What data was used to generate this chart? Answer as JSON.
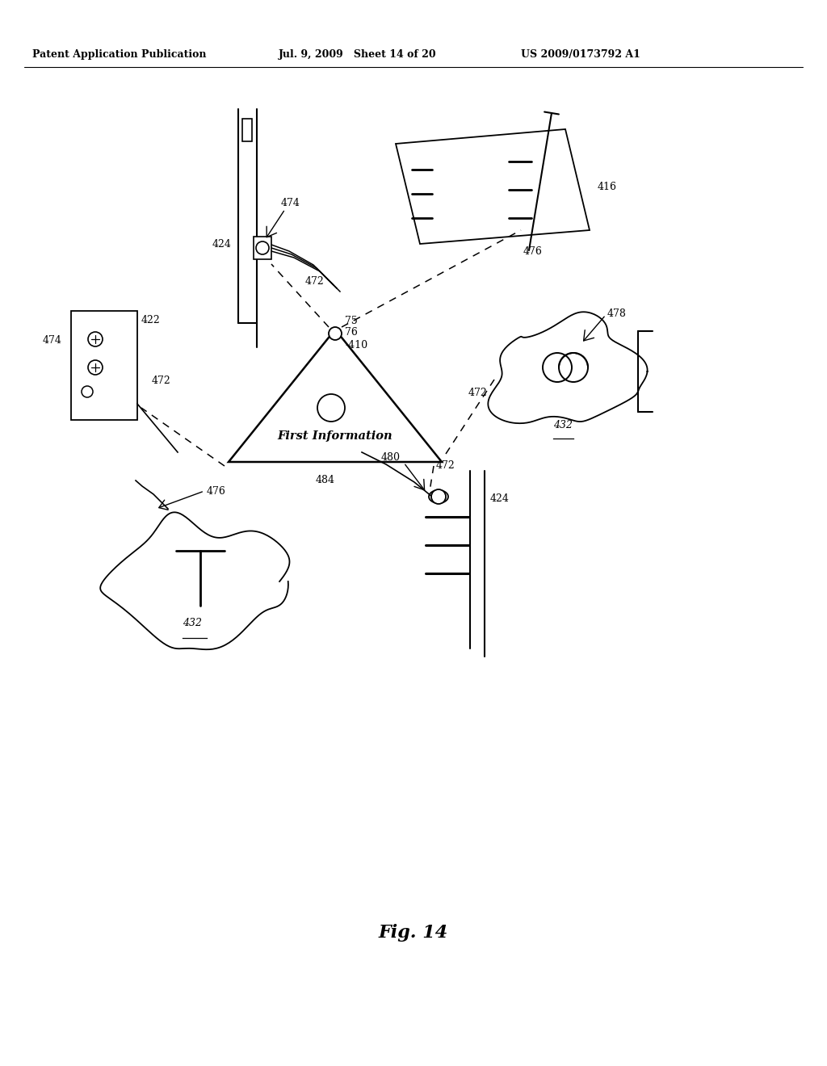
{
  "header_left": "Patent Application Publication",
  "header_mid": "Jul. 9, 2009   Sheet 14 of 20",
  "header_right": "US 2009/0173792 A1",
  "fig_label": "Fig. 14",
  "bg": "#ffffff"
}
